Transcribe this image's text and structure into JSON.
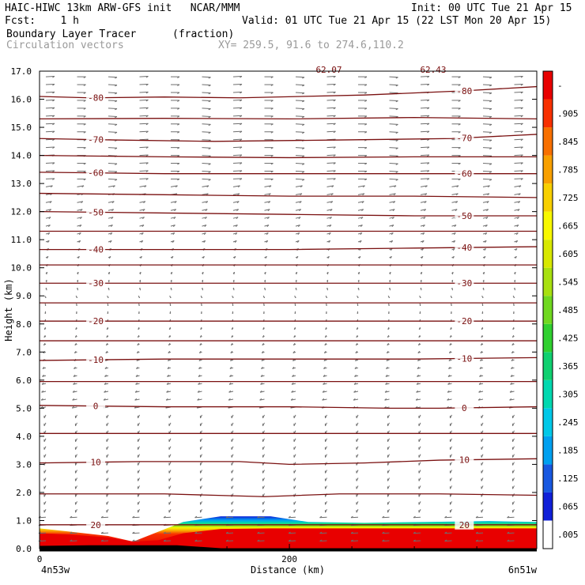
{
  "header": {
    "title": "HAIC-HIWC 13km ARW-GFS init   NCAR/MMM",
    "init": "Init: 00 UTC Tue 21 Apr 15",
    "fcst": "Fcst:    1 h",
    "valid": "Valid: 01 UTC Tue 21 Apr 15 (22 LST Mon 20 Apr 15)",
    "field1": "Boundary Layer Tracer",
    "field1_units": "(fraction)",
    "field2": "Circulation vectors",
    "xy": "XY= 259.5, 91.6 to 274.6,110.2"
  },
  "chart_data": {
    "type": "heatmap",
    "xlabel": "Distance (km)",
    "ylabel": "Height (km)",
    "xlim": [
      0,
      398
    ],
    "ylim": [
      0,
      17
    ],
    "y_ticks": [
      "0.0",
      "1.0",
      "2.0",
      "3.0",
      "4.0",
      "5.0",
      "6.0",
      "7.0",
      "8.0",
      "9.0",
      "10.0",
      "11.0",
      "12.0",
      "13.0",
      "14.0",
      "15.0",
      "16.0",
      "17.0"
    ],
    "x_ticks": [
      {
        "value": 0,
        "label": "0"
      },
      {
        "value": 200,
        "label": "200"
      }
    ],
    "x_end_labels": {
      "left": "4n53w",
      "right": "6n51w"
    },
    "top_partial_labels": [
      "62.07",
      "62.43"
    ],
    "colorbar": {
      "labels": [
        "-",
        ".905",
        ".845",
        ".785",
        ".725",
        ".665",
        ".605",
        ".545",
        ".485",
        ".425",
        ".365",
        ".305",
        ".245",
        ".185",
        ".125",
        ".065",
        ".005"
      ],
      "colors": [
        "#ffffff",
        "#1020d8",
        "#1858e0",
        "#00a0f0",
        "#00c8e8",
        "#00d8b0",
        "#10d070",
        "#30d030",
        "#70d820",
        "#a8e010",
        "#d8e800",
        "#f8f800",
        "#f8d000",
        "#f8a000",
        "#f87000",
        "#f83000",
        "#e80000"
      ]
    },
    "temperature_contours": [
      {
        "label": "-80",
        "points": [
          [
            0,
            16.1
          ],
          [
            40,
            16.05
          ],
          [
            100,
            16.08
          ],
          [
            160,
            16.05
          ],
          [
            260,
            16.15
          ],
          [
            340,
            16.3
          ],
          [
            398,
            16.45
          ]
        ]
      },
      {
        "label": "",
        "points": [
          [
            0,
            15.3
          ],
          [
            100,
            15.32
          ],
          [
            200,
            15.3
          ],
          [
            300,
            15.35
          ],
          [
            398,
            15.3
          ]
        ]
      },
      {
        "label": "-70",
        "points": [
          [
            0,
            14.6
          ],
          [
            60,
            14.55
          ],
          [
            140,
            14.5
          ],
          [
            240,
            14.55
          ],
          [
            330,
            14.6
          ],
          [
            398,
            14.75
          ]
        ]
      },
      {
        "label": "",
        "points": [
          [
            0,
            14.0
          ],
          [
            100,
            13.95
          ],
          [
            200,
            13.92
          ],
          [
            300,
            13.95
          ],
          [
            398,
            13.95
          ]
        ]
      },
      {
        "label": "-60",
        "points": [
          [
            0,
            13.4
          ],
          [
            100,
            13.35
          ],
          [
            200,
            13.35
          ],
          [
            300,
            13.35
          ],
          [
            398,
            13.35
          ]
        ]
      },
      {
        "label": "",
        "points": [
          [
            0,
            12.65
          ],
          [
            100,
            12.6
          ],
          [
            200,
            12.55
          ],
          [
            300,
            12.55
          ],
          [
            398,
            12.5
          ]
        ]
      },
      {
        "label": "-50",
        "points": [
          [
            0,
            12.0
          ],
          [
            100,
            11.95
          ],
          [
            200,
            11.9
          ],
          [
            300,
            11.85
          ],
          [
            398,
            11.85
          ]
        ]
      },
      {
        "label": "",
        "points": [
          [
            0,
            11.3
          ],
          [
            100,
            11.3
          ],
          [
            200,
            11.3
          ],
          [
            300,
            11.3
          ],
          [
            398,
            11.3
          ]
        ]
      },
      {
        "label": "-40",
        "points": [
          [
            0,
            10.65
          ],
          [
            100,
            10.65
          ],
          [
            200,
            10.65
          ],
          [
            300,
            10.7
          ],
          [
            398,
            10.75
          ]
        ]
      },
      {
        "label": "",
        "points": [
          [
            0,
            10.1
          ],
          [
            100,
            10.1
          ],
          [
            200,
            10.1
          ],
          [
            300,
            10.1
          ],
          [
            398,
            10.1
          ]
        ]
      },
      {
        "label": "-30",
        "points": [
          [
            0,
            9.45
          ],
          [
            100,
            9.45
          ],
          [
            200,
            9.45
          ],
          [
            300,
            9.45
          ],
          [
            398,
            9.45
          ]
        ]
      },
      {
        "label": "",
        "points": [
          [
            0,
            8.75
          ],
          [
            100,
            8.75
          ],
          [
            200,
            8.75
          ],
          [
            300,
            8.75
          ],
          [
            398,
            8.75
          ]
        ]
      },
      {
        "label": "-20",
        "points": [
          [
            0,
            8.1
          ],
          [
            100,
            8.1
          ],
          [
            200,
            8.1
          ],
          [
            300,
            8.1
          ],
          [
            398,
            8.1
          ]
        ]
      },
      {
        "label": "",
        "points": [
          [
            0,
            7.4
          ],
          [
            100,
            7.4
          ],
          [
            200,
            7.4
          ],
          [
            300,
            7.4
          ],
          [
            398,
            7.4
          ]
        ]
      },
      {
        "label": "-10",
        "points": [
          [
            0,
            6.7
          ],
          [
            100,
            6.75
          ],
          [
            200,
            6.75
          ],
          [
            300,
            6.75
          ],
          [
            398,
            6.8
          ]
        ]
      },
      {
        "label": "",
        "points": [
          [
            0,
            5.95
          ],
          [
            100,
            5.95
          ],
          [
            200,
            5.95
          ],
          [
            300,
            5.95
          ],
          [
            398,
            5.95
          ]
        ]
      },
      {
        "label": "0",
        "points": [
          [
            0,
            5.1
          ],
          [
            100,
            5.05
          ],
          [
            200,
            5.05
          ],
          [
            280,
            5.0
          ],
          [
            320,
            5.0
          ],
          [
            398,
            5.05
          ]
        ]
      },
      {
        "label": "",
        "points": [
          [
            0,
            4.1
          ],
          [
            100,
            4.1
          ],
          [
            200,
            4.1
          ],
          [
            300,
            4.1
          ],
          [
            398,
            4.1
          ]
        ]
      },
      {
        "label": "10",
        "points": [
          [
            0,
            3.05
          ],
          [
            80,
            3.1
          ],
          [
            160,
            3.1
          ],
          [
            200,
            3.0
          ],
          [
            260,
            3.05
          ],
          [
            320,
            3.15
          ],
          [
            398,
            3.2
          ]
        ]
      },
      {
        "label": "",
        "points": [
          [
            0,
            1.95
          ],
          [
            100,
            1.95
          ],
          [
            180,
            1.85
          ],
          [
            240,
            1.95
          ],
          [
            320,
            1.95
          ],
          [
            398,
            1.9
          ]
        ]
      },
      {
        "label": "20",
        "points": [
          [
            0,
            0.85
          ],
          [
            60,
            0.85
          ],
          [
            100,
            0.85
          ],
          [
            200,
            0.85
          ],
          [
            300,
            0.85
          ],
          [
            398,
            0.85
          ]
        ]
      }
    ],
    "tracer_profile": [
      {
        "x": 0,
        "top": 0.72,
        "core": 0.55
      },
      {
        "x": 25,
        "top": 0.6,
        "core": 0.5
      },
      {
        "x": 55,
        "top": 0.45,
        "core": 0.4
      },
      {
        "x": 75,
        "top": 0.25,
        "core": 0.25
      },
      {
        "x": 95,
        "top": 0.6,
        "core": 0.3
      },
      {
        "x": 115,
        "top": 0.95,
        "core": 0.55
      },
      {
        "x": 145,
        "top": 1.15,
        "core": 0.7
      },
      {
        "x": 185,
        "top": 1.15,
        "core": 0.72
      },
      {
        "x": 215,
        "top": 0.95,
        "core": 0.72
      },
      {
        "x": 260,
        "top": 0.92,
        "core": 0.72
      },
      {
        "x": 310,
        "top": 0.95,
        "core": 0.72
      },
      {
        "x": 360,
        "top": 0.98,
        "core": 0.72
      },
      {
        "x": 398,
        "top": 0.95,
        "core": 0.72
      }
    ],
    "terrain": [
      [
        0,
        0.1
      ],
      [
        40,
        0.12
      ],
      [
        80,
        0.12
      ],
      [
        110,
        0.12
      ],
      [
        150,
        0.0
      ],
      [
        398,
        0.0
      ]
    ]
  }
}
